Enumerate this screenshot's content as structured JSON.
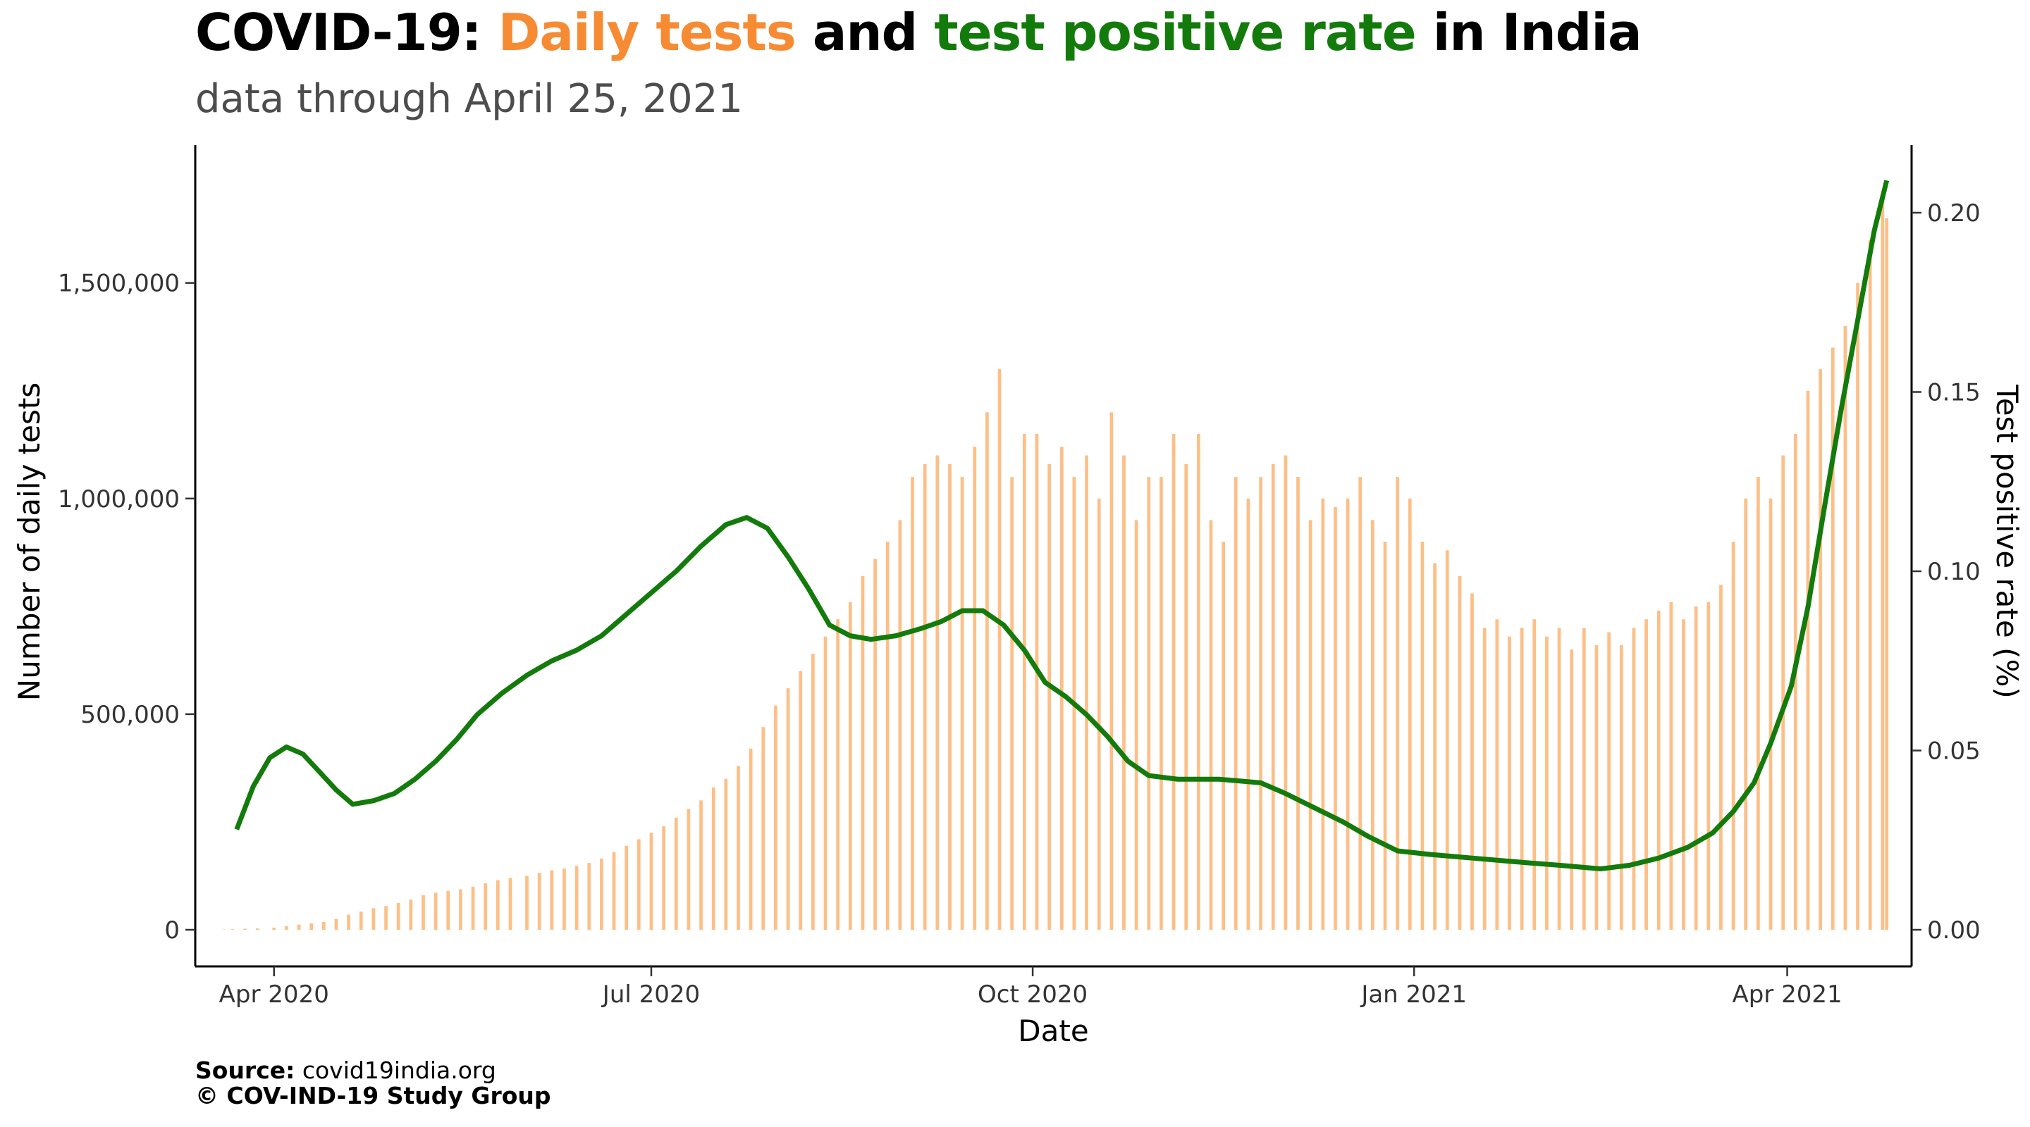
{
  "title": {
    "prefix": "COVID-19: ",
    "series1": "Daily tests",
    "mid": " and ",
    "series2": "test positive rate",
    "suffix": " in India"
  },
  "subtitle": "data through April 25, 2021",
  "caption": {
    "source_label": "Source:",
    "source_value": " covid19india.org",
    "copyright": "© COV-IND-19 Study Group"
  },
  "colors": {
    "tests": "#fdbf87",
    "tests_title": "#f68b33",
    "tpr": "#137b0b",
    "text": "#000000",
    "subtitle": "#4d4d4d"
  },
  "chart_data": {
    "type": "bar",
    "xlabel": "Date",
    "ylabel_left": "Number of daily tests",
    "ylabel_right": "Test positive rate (%)",
    "x_range": [
      "2020-03-13",
      "2021-05-01"
    ],
    "ylim_left": [
      0,
      1800000
    ],
    "ylim_right": [
      0,
      0.2
    ],
    "x_ticks": [
      {
        "date": "2020-04-01",
        "label": "Apr 2020"
      },
      {
        "date": "2020-07-01",
        "label": "Jul 2020"
      },
      {
        "date": "2020-10-01",
        "label": "Oct 2020"
      },
      {
        "date": "2021-01-01",
        "label": "Jan 2021"
      },
      {
        "date": "2021-04-01",
        "label": "Apr 2021"
      }
    ],
    "y_ticks_left": [
      {
        "value": 0,
        "label": "0"
      },
      {
        "value": 500000,
        "label": "500,000"
      },
      {
        "value": 1000000,
        "label": "1,000,000"
      },
      {
        "value": 1500000,
        "label": "1,500,000"
      }
    ],
    "y_ticks_right": [
      {
        "value": 0.0,
        "label": "0.00"
      },
      {
        "value": 0.05,
        "label": "0.05"
      },
      {
        "value": 0.1,
        "label": "0.10"
      },
      {
        "value": 0.15,
        "label": "0.15"
      },
      {
        "value": 0.2,
        "label": "0.20"
      }
    ],
    "series": [
      {
        "name": "Daily tests",
        "axis": "left",
        "type": "bar",
        "points": [
          [
            "2020-03-18",
            0
          ],
          [
            "2020-03-20",
            800
          ],
          [
            "2020-03-22",
            1500
          ],
          [
            "2020-03-25",
            2500
          ],
          [
            "2020-03-28",
            3000
          ],
          [
            "2020-04-01",
            5000
          ],
          [
            "2020-04-04",
            8000
          ],
          [
            "2020-04-07",
            12000
          ],
          [
            "2020-04-10",
            15000
          ],
          [
            "2020-04-13",
            18000
          ],
          [
            "2020-04-16",
            25000
          ],
          [
            "2020-04-19",
            35000
          ],
          [
            "2020-04-22",
            42000
          ],
          [
            "2020-04-25",
            50000
          ],
          [
            "2020-04-28",
            55000
          ],
          [
            "2020-05-01",
            62000
          ],
          [
            "2020-05-04",
            70000
          ],
          [
            "2020-05-07",
            80000
          ],
          [
            "2020-05-10",
            86000
          ],
          [
            "2020-05-13",
            90000
          ],
          [
            "2020-05-16",
            94000
          ],
          [
            "2020-05-19",
            100000
          ],
          [
            "2020-05-22",
            108000
          ],
          [
            "2020-05-25",
            115000
          ],
          [
            "2020-05-28",
            120000
          ],
          [
            "2020-06-01",
            125000
          ],
          [
            "2020-06-04",
            132000
          ],
          [
            "2020-06-07",
            138000
          ],
          [
            "2020-06-10",
            142000
          ],
          [
            "2020-06-13",
            148000
          ],
          [
            "2020-06-16",
            155000
          ],
          [
            "2020-06-19",
            165000
          ],
          [
            "2020-06-22",
            180000
          ],
          [
            "2020-06-25",
            195000
          ],
          [
            "2020-06-28",
            210000
          ],
          [
            "2020-07-01",
            225000
          ],
          [
            "2020-07-04",
            240000
          ],
          [
            "2020-07-07",
            260000
          ],
          [
            "2020-07-10",
            280000
          ],
          [
            "2020-07-13",
            300000
          ],
          [
            "2020-07-16",
            330000
          ],
          [
            "2020-07-19",
            350000
          ],
          [
            "2020-07-22",
            380000
          ],
          [
            "2020-07-25",
            420000
          ],
          [
            "2020-07-28",
            470000
          ],
          [
            "2020-07-31",
            520000
          ],
          [
            "2020-08-03",
            560000
          ],
          [
            "2020-08-06",
            600000
          ],
          [
            "2020-08-09",
            640000
          ],
          [
            "2020-08-12",
            680000
          ],
          [
            "2020-08-15",
            720000
          ],
          [
            "2020-08-18",
            760000
          ],
          [
            "2020-08-21",
            820000
          ],
          [
            "2020-08-24",
            860000
          ],
          [
            "2020-08-27",
            900000
          ],
          [
            "2020-08-30",
            950000
          ],
          [
            "2020-09-02",
            1050000
          ],
          [
            "2020-09-05",
            1080000
          ],
          [
            "2020-09-08",
            1100000
          ],
          [
            "2020-09-11",
            1080000
          ],
          [
            "2020-09-14",
            1050000
          ],
          [
            "2020-09-17",
            1120000
          ],
          [
            "2020-09-20",
            1200000
          ],
          [
            "2020-09-23",
            1300000
          ],
          [
            "2020-09-26",
            1050000
          ],
          [
            "2020-09-29",
            1150000
          ],
          [
            "2020-10-02",
            1150000
          ],
          [
            "2020-10-05",
            1080000
          ],
          [
            "2020-10-08",
            1120000
          ],
          [
            "2020-10-11",
            1050000
          ],
          [
            "2020-10-14",
            1100000
          ],
          [
            "2020-10-17",
            1000000
          ],
          [
            "2020-10-20",
            1200000
          ],
          [
            "2020-10-23",
            1100000
          ],
          [
            "2020-10-26",
            950000
          ],
          [
            "2020-10-29",
            1050000
          ],
          [
            "2020-11-01",
            1050000
          ],
          [
            "2020-11-04",
            1150000
          ],
          [
            "2020-11-07",
            1080000
          ],
          [
            "2020-11-10",
            1150000
          ],
          [
            "2020-11-13",
            950000
          ],
          [
            "2020-11-16",
            900000
          ],
          [
            "2020-11-19",
            1050000
          ],
          [
            "2020-11-22",
            1000000
          ],
          [
            "2020-11-25",
            1050000
          ],
          [
            "2020-11-28",
            1080000
          ],
          [
            "2020-12-01",
            1100000
          ],
          [
            "2020-12-04",
            1050000
          ],
          [
            "2020-12-07",
            950000
          ],
          [
            "2020-12-10",
            1000000
          ],
          [
            "2020-12-13",
            980000
          ],
          [
            "2020-12-16",
            1000000
          ],
          [
            "2020-12-19",
            1050000
          ],
          [
            "2020-12-22",
            950000
          ],
          [
            "2020-12-25",
            900000
          ],
          [
            "2020-12-28",
            1050000
          ],
          [
            "2020-12-31",
            1000000
          ],
          [
            "2021-01-03",
            900000
          ],
          [
            "2021-01-06",
            850000
          ],
          [
            "2021-01-09",
            880000
          ],
          [
            "2021-01-12",
            820000
          ],
          [
            "2021-01-15",
            780000
          ],
          [
            "2021-01-18",
            700000
          ],
          [
            "2021-01-21",
            720000
          ],
          [
            "2021-01-24",
            680000
          ],
          [
            "2021-01-27",
            700000
          ],
          [
            "2021-01-30",
            720000
          ],
          [
            "2021-02-02",
            680000
          ],
          [
            "2021-02-05",
            700000
          ],
          [
            "2021-02-08",
            650000
          ],
          [
            "2021-02-11",
            700000
          ],
          [
            "2021-02-14",
            660000
          ],
          [
            "2021-02-17",
            690000
          ],
          [
            "2021-02-20",
            660000
          ],
          [
            "2021-02-23",
            700000
          ],
          [
            "2021-02-26",
            720000
          ],
          [
            "2021-03-01",
            740000
          ],
          [
            "2021-03-04",
            760000
          ],
          [
            "2021-03-07",
            720000
          ],
          [
            "2021-03-10",
            750000
          ],
          [
            "2021-03-13",
            760000
          ],
          [
            "2021-03-16",
            800000
          ],
          [
            "2021-03-19",
            900000
          ],
          [
            "2021-03-22",
            1000000
          ],
          [
            "2021-03-25",
            1050000
          ],
          [
            "2021-03-28",
            1000000
          ],
          [
            "2021-03-31",
            1100000
          ],
          [
            "2021-04-03",
            1150000
          ],
          [
            "2021-04-06",
            1250000
          ],
          [
            "2021-04-09",
            1300000
          ],
          [
            "2021-04-12",
            1350000
          ],
          [
            "2021-04-15",
            1400000
          ],
          [
            "2021-04-18",
            1500000
          ],
          [
            "2021-04-21",
            1600000
          ],
          [
            "2021-04-24",
            1700000
          ],
          [
            "2021-04-25",
            1650000
          ]
        ]
      },
      {
        "name": "Test positive rate",
        "axis": "right",
        "type": "line",
        "points": [
          [
            "2020-03-23",
            0.028
          ],
          [
            "2020-03-27",
            0.04
          ],
          [
            "2020-03-31",
            0.048
          ],
          [
            "2020-04-04",
            0.051
          ],
          [
            "2020-04-08",
            0.049
          ],
          [
            "2020-04-12",
            0.044
          ],
          [
            "2020-04-16",
            0.039
          ],
          [
            "2020-04-20",
            0.035
          ],
          [
            "2020-04-25",
            0.036
          ],
          [
            "2020-04-30",
            0.038
          ],
          [
            "2020-05-05",
            0.042
          ],
          [
            "2020-05-10",
            0.047
          ],
          [
            "2020-05-15",
            0.053
          ],
          [
            "2020-05-20",
            0.06
          ],
          [
            "2020-05-26",
            0.066
          ],
          [
            "2020-06-01",
            0.071
          ],
          [
            "2020-06-07",
            0.075
          ],
          [
            "2020-06-13",
            0.078
          ],
          [
            "2020-06-19",
            0.082
          ],
          [
            "2020-06-25",
            0.088
          ],
          [
            "2020-07-01",
            0.094
          ],
          [
            "2020-07-07",
            0.1
          ],
          [
            "2020-07-13",
            0.107
          ],
          [
            "2020-07-19",
            0.113
          ],
          [
            "2020-07-24",
            0.115
          ],
          [
            "2020-07-29",
            0.112
          ],
          [
            "2020-08-03",
            0.104
          ],
          [
            "2020-08-08",
            0.095
          ],
          [
            "2020-08-13",
            0.085
          ],
          [
            "2020-08-18",
            0.082
          ],
          [
            "2020-08-23",
            0.081
          ],
          [
            "2020-08-29",
            0.082
          ],
          [
            "2020-09-04",
            0.084
          ],
          [
            "2020-09-09",
            0.086
          ],
          [
            "2020-09-14",
            0.089
          ],
          [
            "2020-09-19",
            0.089
          ],
          [
            "2020-09-24",
            0.085
          ],
          [
            "2020-09-29",
            0.078
          ],
          [
            "2020-10-04",
            0.069
          ],
          [
            "2020-10-09",
            0.065
          ],
          [
            "2020-10-14",
            0.06
          ],
          [
            "2020-10-19",
            0.054
          ],
          [
            "2020-10-24",
            0.047
          ],
          [
            "2020-10-29",
            0.043
          ],
          [
            "2020-11-05",
            0.042
          ],
          [
            "2020-11-15",
            0.042
          ],
          [
            "2020-11-25",
            0.041
          ],
          [
            "2020-12-01",
            0.038
          ],
          [
            "2020-12-08",
            0.034
          ],
          [
            "2020-12-15",
            0.03
          ],
          [
            "2020-12-21",
            0.026
          ],
          [
            "2020-12-28",
            0.022
          ],
          [
            "2021-01-05",
            0.021
          ],
          [
            "2021-01-15",
            0.02
          ],
          [
            "2021-01-25",
            0.019
          ],
          [
            "2021-02-05",
            0.018
          ],
          [
            "2021-02-15",
            0.017
          ],
          [
            "2021-02-22",
            0.018
          ],
          [
            "2021-03-01",
            0.02
          ],
          [
            "2021-03-08",
            0.023
          ],
          [
            "2021-03-14",
            0.027
          ],
          [
            "2021-03-19",
            0.033
          ],
          [
            "2021-03-24",
            0.041
          ],
          [
            "2021-03-28",
            0.052
          ],
          [
            "2021-04-02",
            0.068
          ],
          [
            "2021-04-06",
            0.09
          ],
          [
            "2021-04-10",
            0.118
          ],
          [
            "2021-04-14",
            0.145
          ],
          [
            "2021-04-18",
            0.17
          ],
          [
            "2021-04-22",
            0.195
          ],
          [
            "2021-04-25",
            0.209
          ]
        ]
      }
    ]
  }
}
